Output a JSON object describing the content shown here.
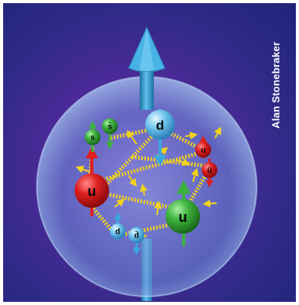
{
  "credit": "Alan Stonebraker",
  "quarks": {
    "s_green": "s",
    "sbar_green": "s̄",
    "d_top": "d",
    "u_red_left": "u",
    "u_green_big": "u",
    "u_red_small": "u",
    "ubar_red": "ū",
    "d_small": "d",
    "dbar_small": "d̄"
  },
  "icons": {
    "spin_arrow": "up-arrow",
    "nucleon": "sphere",
    "gluon": "spring-line"
  },
  "colors": {
    "background": "#2d2a86",
    "sphere": "#5f82cf",
    "spin_arrow": "#3fa3d6",
    "red_quark": "#e02020",
    "green_quark": "#3db23d",
    "blue_quark": "#3ba7e0",
    "gluon": "#f0d020"
  }
}
